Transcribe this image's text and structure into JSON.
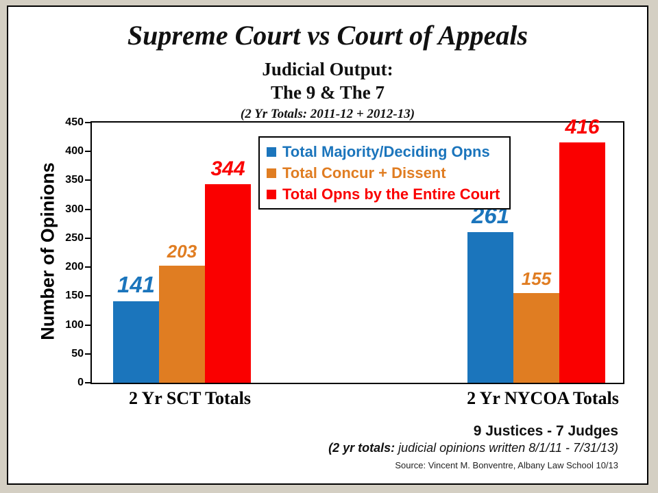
{
  "header": {
    "title": "Supreme Court vs Court of Appeals",
    "subtitle1": "Judicial Output:",
    "subtitle2": "The 9 & The 7",
    "subtitle3": "(2 Yr Totals: 2011-12  + 2012-13)"
  },
  "chart_data": {
    "type": "bar",
    "title": "Supreme Court vs Court of Appeals",
    "categories": [
      "2 Yr SCT Totals",
      "2 Yr NYCOA Totals"
    ],
    "series": [
      {
        "name": "Total Majority/Deciding Opns",
        "color": "#1B75BC",
        "values": [
          141,
          261
        ]
      },
      {
        "name": "Total Concur + Dissent",
        "color": "#E07D22",
        "values": [
          203,
          155
        ]
      },
      {
        "name": "Total Opns by the Entire Court",
        "color": "#FA0000",
        "values": [
          344,
          416
        ]
      }
    ],
    "ylabel": "Number of Opinions",
    "xlabel": "",
    "ylim": [
      0,
      450
    ],
    "ytick_step": 50,
    "grid": false,
    "legend_position": "inside-top-center"
  },
  "footer": {
    "line1": "9 Justices -  7 Judges",
    "line2_prefix": "(2 yr totals:",
    "line2_rest": " judicial opinions written 8/1/11 - 7/31/13)",
    "source": "Source:  Vincent M. Bonventre,  Albany Law School  10/13"
  }
}
